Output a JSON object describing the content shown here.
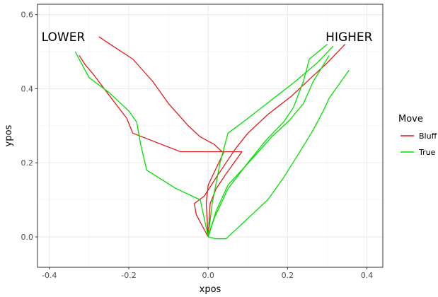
{
  "chart_data": {
    "type": "line",
    "xlabel": "xpos",
    "ylabel": "ypos",
    "xlim": [
      -0.43,
      0.44
    ],
    "ylim": [
      -0.082,
      0.628
    ],
    "x_ticks": [
      -0.4,
      -0.2,
      0.0,
      0.2,
      0.4
    ],
    "y_ticks": [
      0.0,
      0.2,
      0.4,
      0.6
    ],
    "x_tick_labels": [
      "-0.4",
      "-0.2",
      "0.0",
      "0.2",
      "0.4"
    ],
    "y_tick_labels": [
      "0.0",
      "0.2",
      "0.4",
      "0.6"
    ],
    "grid": true,
    "legend": {
      "title": "Move",
      "position": "right"
    },
    "annotations": [
      {
        "text": "LOWER",
        "x": -0.365,
        "y": 0.54
      },
      {
        "text": "HIGHER",
        "x": 0.355,
        "y": 0.54
      }
    ],
    "colors": {
      "Bluff": "#e41a1c",
      "True": "#00e000"
    },
    "series": [
      {
        "name": "Bluff",
        "points": [
          [
            0.0,
            0.0
          ],
          [
            -0.03,
            0.06
          ],
          [
            -0.035,
            0.09
          ],
          [
            -0.01,
            0.11
          ],
          [
            0.02,
            0.16
          ],
          [
            0.07,
            0.24
          ],
          [
            0.1,
            0.28
          ],
          [
            0.15,
            0.33
          ],
          [
            0.21,
            0.38
          ],
          [
            0.26,
            0.43
          ],
          [
            0.3,
            0.47
          ],
          [
            0.345,
            0.52
          ]
        ]
      },
      {
        "name": "Bluff",
        "points": [
          [
            0.0,
            0.0
          ],
          [
            -0.005,
            0.09
          ],
          [
            0.0,
            0.14
          ],
          [
            0.04,
            0.23
          ],
          [
            -0.07,
            0.23
          ],
          [
            -0.19,
            0.28
          ],
          [
            -0.205,
            0.32
          ],
          [
            -0.255,
            0.39
          ],
          [
            -0.29,
            0.44
          ],
          [
            -0.31,
            0.465
          ],
          [
            -0.325,
            0.49
          ]
        ]
      },
      {
        "name": "Bluff",
        "points": [
          [
            0.0,
            0.0
          ],
          [
            0.005,
            0.09
          ],
          [
            0.02,
            0.13
          ],
          [
            0.045,
            0.17
          ],
          [
            0.085,
            0.23
          ],
          [
            0.035,
            0.23
          ],
          [
            0.015,
            0.25
          ],
          [
            -0.02,
            0.27
          ],
          [
            -0.05,
            0.3
          ],
          [
            -0.1,
            0.36
          ],
          [
            -0.14,
            0.42
          ],
          [
            -0.19,
            0.48
          ],
          [
            -0.24,
            0.515
          ],
          [
            -0.275,
            0.54
          ]
        ]
      },
      {
        "name": "True",
        "points": [
          [
            0.0,
            0.0
          ],
          [
            0.02,
            0.07
          ],
          [
            0.05,
            0.14
          ],
          [
            0.11,
            0.21
          ],
          [
            0.16,
            0.27
          ],
          [
            0.205,
            0.315
          ],
          [
            0.24,
            0.36
          ],
          [
            0.265,
            0.42
          ],
          [
            0.305,
            0.49
          ]
        ]
      },
      {
        "name": "True",
        "points": [
          [
            0.0,
            0.0
          ],
          [
            0.01,
            0.09
          ],
          [
            0.03,
            0.2
          ],
          [
            0.05,
            0.28
          ],
          [
            0.1,
            0.32
          ],
          [
            0.16,
            0.37
          ],
          [
            0.22,
            0.42
          ],
          [
            0.275,
            0.47
          ],
          [
            0.315,
            0.515
          ]
        ]
      },
      {
        "name": "True",
        "points": [
          [
            0.0,
            0.0
          ],
          [
            0.015,
            0.05
          ],
          [
            0.05,
            0.13
          ],
          [
            0.1,
            0.2
          ],
          [
            0.145,
            0.26
          ],
          [
            0.19,
            0.31
          ],
          [
            0.215,
            0.35
          ],
          [
            0.24,
            0.42
          ],
          [
            0.255,
            0.48
          ],
          [
            0.3,
            0.52
          ]
        ]
      },
      {
        "name": "True",
        "points": [
          [
            0.0,
            0.0
          ],
          [
            0.02,
            -0.005
          ],
          [
            0.045,
            -0.005
          ],
          [
            0.06,
            0.01
          ],
          [
            0.1,
            0.05
          ],
          [
            0.15,
            0.1
          ],
          [
            0.19,
            0.16
          ],
          [
            0.225,
            0.22
          ],
          [
            0.26,
            0.28
          ],
          [
            0.29,
            0.34
          ],
          [
            0.305,
            0.375
          ],
          [
            0.335,
            0.42
          ],
          [
            0.355,
            0.45
          ]
        ]
      },
      {
        "name": "True",
        "points": [
          [
            0.0,
            0.0
          ],
          [
            -0.02,
            0.1
          ],
          [
            -0.08,
            0.13
          ],
          [
            -0.155,
            0.18
          ],
          [
            -0.17,
            0.25
          ],
          [
            -0.18,
            0.31
          ],
          [
            -0.2,
            0.34
          ],
          [
            -0.25,
            0.39
          ],
          [
            -0.3,
            0.43
          ],
          [
            -0.31,
            0.45
          ],
          [
            -0.32,
            0.47
          ],
          [
            -0.335,
            0.5
          ]
        ]
      }
    ]
  }
}
